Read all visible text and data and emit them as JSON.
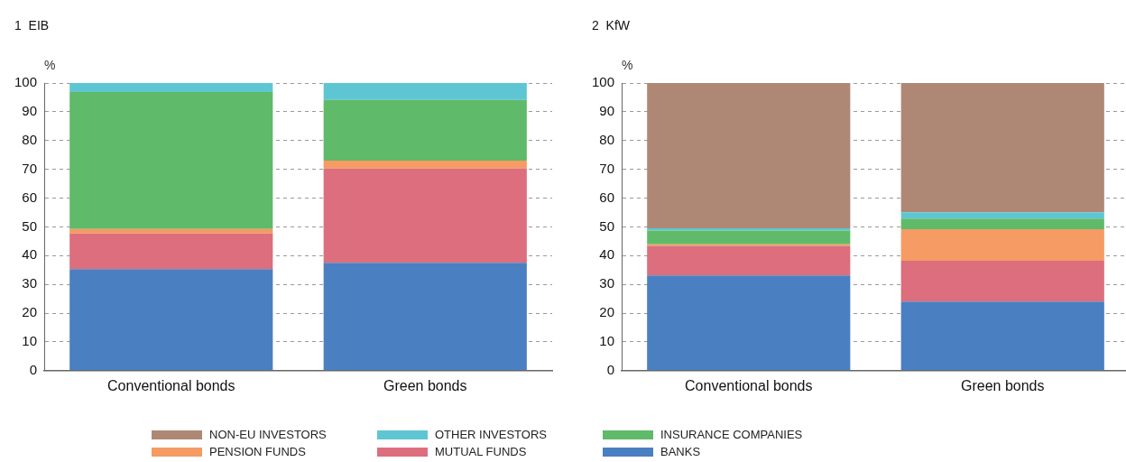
{
  "chart_data": [
    {
      "type": "bar",
      "title": "1  EIB",
      "ylabel": "%",
      "stacked": true,
      "categories": [
        "Conventional bonds",
        "Green bonds"
      ],
      "ylim": [
        0,
        100
      ],
      "yticks": [
        0,
        10,
        20,
        30,
        40,
        50,
        60,
        70,
        80,
        90,
        100
      ],
      "grid": "y",
      "legend": "bottom",
      "series": [
        {
          "name": "BANKS",
          "color": "#4a7fc1",
          "values": [
            35.3,
            37.5
          ]
        },
        {
          "name": "MUTUAL FUNDS",
          "color": "#dc6e7d",
          "values": [
            12.4,
            32.8
          ]
        },
        {
          "name": "PENSION FUNDS",
          "color": "#f59b63",
          "values": [
            1.6,
            2.7
          ]
        },
        {
          "name": "INSURANCE COMPANIES",
          "color": "#5fba6a",
          "values": [
            47.6,
            21.1
          ]
        },
        {
          "name": "OTHER INVESTORS",
          "color": "#5ec6d3",
          "values": [
            3.1,
            5.9
          ]
        }
      ]
    },
    {
      "type": "bar",
      "title": "2  KfW",
      "ylabel": "%",
      "stacked": true,
      "categories": [
        "Conventional bonds",
        "Green bonds"
      ],
      "ylim": [
        0,
        100
      ],
      "yticks": [
        0,
        10,
        20,
        30,
        40,
        50,
        60,
        70,
        80,
        90,
        100
      ],
      "grid": "y",
      "legend": "bottom",
      "series": [
        {
          "name": "BANKS",
          "color": "#4a7fc1",
          "values": [
            33.1,
            24
          ]
        },
        {
          "name": "MUTUAL FUNDS",
          "color": "#dc6e7d",
          "values": [
            10.3,
            14.2
          ]
        },
        {
          "name": "PENSION FUNDS",
          "color": "#f59b63",
          "values": [
            0.5,
            11
          ]
        },
        {
          "name": "INSURANCE COMPANIES",
          "color": "#5fba6a",
          "values": [
            4.8,
            3.7
          ]
        },
        {
          "name": "OTHER INVESTORS",
          "color": "#5ec6d3",
          "values": [
            0.8,
            2.2
          ]
        },
        {
          "name": "NON-EU INVESTORS",
          "color": "#ae8875",
          "values": [
            50.5,
            44.9
          ]
        }
      ]
    }
  ]
}
